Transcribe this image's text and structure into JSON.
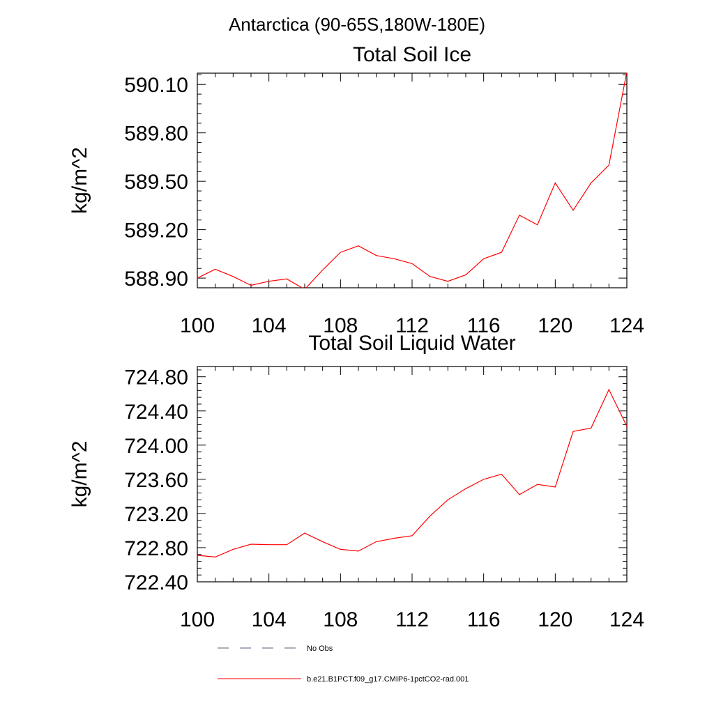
{
  "page": {
    "region_title": "Antarctica (90-65S,180W-180E)"
  },
  "chart_data": [
    {
      "type": "line",
      "title": "Total Soil Ice",
      "ylabel": "kg/m^2",
      "xlabel": "",
      "xlim": [
        100,
        124
      ],
      "ylim": [
        588.84,
        590.17
      ],
      "xticks": [
        "100",
        "104",
        "108",
        "112",
        "116",
        "120",
        "124"
      ],
      "yticks": [
        "588.90",
        "589.20",
        "589.50",
        "589.80",
        "590.10"
      ],
      "series": [
        {
          "name": "b.e21.B1PCT.f09_g17.CMIP6-1pctCO2-rad.001",
          "color": "#ff0000",
          "x": [
            100,
            101,
            102,
            103,
            104,
            105,
            106,
            107,
            108,
            109,
            110,
            111,
            112,
            113,
            114,
            115,
            116,
            117,
            118,
            119,
            120,
            121,
            122,
            123,
            124
          ],
          "values": [
            588.9,
            588.955,
            588.91,
            588.855,
            588.88,
            588.895,
            588.83,
            588.95,
            589.06,
            589.1,
            589.04,
            589.02,
            588.99,
            588.91,
            588.88,
            588.92,
            589.02,
            589.06,
            589.29,
            589.23,
            589.49,
            589.32,
            589.49,
            589.6,
            590.18
          ]
        }
      ]
    },
    {
      "type": "line",
      "title": "Total Soil Liquid Water",
      "ylabel": "kg/m^2",
      "xlabel": "",
      "xlim": [
        100,
        124
      ],
      "ylim": [
        722.4,
        724.92
      ],
      "xticks": [
        "100",
        "104",
        "108",
        "112",
        "116",
        "120",
        "124"
      ],
      "yticks": [
        "722.40",
        "722.80",
        "723.20",
        "723.60",
        "724.00",
        "724.40",
        "724.80"
      ],
      "series": [
        {
          "name": "b.e21.B1PCT.f09_g17.CMIP6-1pctCO2-rad.001",
          "color": "#ff0000",
          "x": [
            100,
            101,
            102,
            103,
            104,
            105,
            106,
            107,
            108,
            109,
            110,
            111,
            112,
            113,
            114,
            115,
            116,
            117,
            118,
            119,
            120,
            121,
            122,
            123,
            124
          ],
          "values": [
            722.71,
            722.69,
            722.78,
            722.84,
            722.835,
            722.835,
            722.97,
            722.87,
            722.78,
            722.76,
            722.87,
            722.91,
            722.94,
            723.17,
            723.36,
            723.49,
            723.6,
            723.66,
            723.42,
            723.54,
            723.51,
            724.16,
            724.2,
            724.65,
            724.22
          ]
        }
      ]
    }
  ],
  "legend": {
    "items": [
      {
        "label": "No Obs",
        "style": "dashed",
        "color": "#5a5a7a"
      },
      {
        "label": "b.e21.B1PCT.f09_g17.CMIP6-1pctCO2-rad.001",
        "style": "solid",
        "color": "#ff0000"
      }
    ]
  }
}
